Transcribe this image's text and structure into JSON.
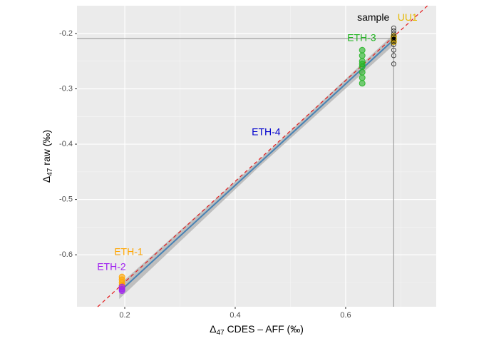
{
  "chart_data": {
    "type": "scatter",
    "xlabel": {
      "pre": "Δ",
      "sub": "47",
      "post": " CDES – AFF (‰)"
    },
    "ylabel": {
      "pre": "Δ",
      "sub": "47",
      "post": " raw (‰)"
    },
    "xlim": [
      0.1135,
      0.764
    ],
    "ylim": [
      -0.694,
      -0.1497
    ],
    "xticks": [
      0.2,
      0.4,
      0.6
    ],
    "yticks": [
      -0.6,
      -0.5,
      -0.4,
      -0.3,
      -0.2
    ],
    "x_minor_grid": [
      0.3,
      0.5,
      0.7
    ],
    "y_minor_grid": [
      -0.65,
      -0.55,
      -0.45,
      -0.35,
      -0.25
    ],
    "grid": true,
    "reference_line": {
      "x": [
        0.151,
        0.748
      ],
      "y": [
        -0.694,
        -0.15
      ],
      "color": "#e41a1c",
      "dashed": true
    },
    "fit_band": {
      "x": [
        0.19,
        0.44,
        0.69
      ],
      "lower": [
        -0.68,
        -0.444,
        -0.218
      ],
      "upper": [
        -0.654,
        -0.432,
        -0.198
      ],
      "color": "#b3b3b3"
    },
    "fit_line": {
      "x": [
        0.2,
        0.685
      ],
      "y": [
        -0.658,
        -0.213
      ],
      "color": "#4682b4"
    },
    "crosshair": {
      "x": 0.687,
      "y": -0.209,
      "color": "#a0a0a0"
    },
    "series": [
      {
        "name": "ETH-1",
        "color": "#ffa500",
        "x": [
          0.195,
          0.195,
          0.195,
          0.195
        ],
        "y": [
          -0.64,
          -0.645,
          -0.65,
          -0.655
        ]
      },
      {
        "name": "ETH-2",
        "color": "#a020f0",
        "x": [
          0.195,
          0.195,
          0.195
        ],
        "y": [
          -0.658,
          -0.662,
          -0.665
        ]
      },
      {
        "name": "ETH-3",
        "color": "#22b422",
        "x": [
          0.63,
          0.63,
          0.63,
          0.63,
          0.63,
          0.63,
          0.63,
          0.63
        ],
        "y": [
          -0.23,
          -0.24,
          -0.25,
          -0.255,
          -0.26,
          -0.27,
          -0.28,
          -0.29
        ]
      },
      {
        "name": "UU1",
        "color": "#e6b800",
        "x": [
          0.687,
          0.687,
          0.687
        ],
        "y": [
          -0.205,
          -0.21,
          -0.215
        ]
      },
      {
        "name": "sample",
        "color": "#000000",
        "x": [
          0.687,
          0.687,
          0.687,
          0.687,
          0.687,
          0.687,
          0.687,
          0.687,
          0.687,
          0.687
        ],
        "y": [
          -0.19,
          -0.195,
          -0.2,
          -0.205,
          -0.21,
          -0.215,
          -0.22,
          -0.23,
          -0.24,
          -0.255
        ]
      }
    ],
    "annotations": [
      {
        "text": "ETH-1",
        "x": 0.207,
        "y": -0.596,
        "color": "#ffa500"
      },
      {
        "text": "ETH-2",
        "x": 0.176,
        "y": -0.623,
        "color": "#a020f0"
      },
      {
        "text": "ETH-3",
        "x": 0.629,
        "y": -0.209,
        "color": "#22b422"
      },
      {
        "text": "ETH-4",
        "x": 0.456,
        "y": -0.379,
        "color": "#0000cd"
      },
      {
        "text": "sample",
        "x": 0.65,
        "y": -0.172,
        "color": "#000000"
      },
      {
        "text": "UU1",
        "x": 0.712,
        "y": -0.172,
        "color": "#e6b800"
      }
    ]
  }
}
